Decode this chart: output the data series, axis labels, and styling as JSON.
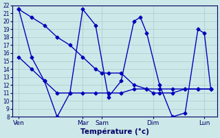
{
  "background_color": "#cce8e8",
  "grid_color": "#aacccc",
  "line_color": "#0000bb",
  "title": "Température (°c)",
  "ylim": [
    8,
    22
  ],
  "yticks": [
    8,
    9,
    10,
    11,
    12,
    13,
    14,
    15,
    16,
    17,
    18,
    19,
    20,
    21,
    22
  ],
  "xlim": [
    0,
    16
  ],
  "day_labels": [
    "Ven",
    "Mar",
    "Sam",
    "Dim",
    "Lun"
  ],
  "day_positions": [
    0.5,
    5.5,
    7.0,
    11.0,
    15.0
  ],
  "line1_x": [
    0.5,
    1.5,
    2.5,
    3.5,
    4.5,
    5.5,
    6.5,
    7.0,
    7.5,
    8.5,
    9.5,
    10.5,
    11.0,
    11.5,
    12.5,
    13.5,
    14.5,
    15.5
  ],
  "line1_y": [
    21.5,
    20.5,
    19.5,
    18.0,
    17.0,
    15.5,
    14.0,
    13.5,
    13.5,
    13.5,
    12.0,
    11.5,
    11.0,
    11.0,
    11.0,
    11.5,
    11.5,
    11.5
  ],
  "line2_x": [
    0.5,
    1.5,
    2.5,
    3.5,
    4.5,
    5.5,
    6.5,
    7.5,
    8.5,
    9.5,
    10.0,
    10.5,
    11.5,
    12.5,
    13.5,
    14.5,
    15.0,
    15.5
  ],
  "line2_y": [
    21.5,
    15.5,
    12.5,
    8.0,
    11.0,
    21.5,
    19.5,
    10.5,
    12.5,
    20.0,
    20.5,
    18.5,
    12.0,
    8.0,
    8.5,
    19.0,
    18.5,
    11.5
  ],
  "line3_x": [
    0.5,
    1.5,
    2.5,
    3.5,
    4.5,
    5.5,
    6.5,
    7.5,
    8.5,
    9.5,
    10.5,
    11.5,
    12.5,
    13.5,
    14.5,
    15.5
  ],
  "line3_y": [
    15.5,
    14.0,
    12.5,
    11.0,
    11.0,
    11.0,
    11.0,
    11.0,
    11.0,
    11.5,
    11.5,
    11.5,
    11.5,
    11.5,
    11.5,
    11.5
  ],
  "marker_size": 2.5,
  "line_width": 1.0,
  "tick_fontsize": 5.5,
  "xlabel_fontsize": 7.5,
  "xtick_fontsize": 6.5
}
